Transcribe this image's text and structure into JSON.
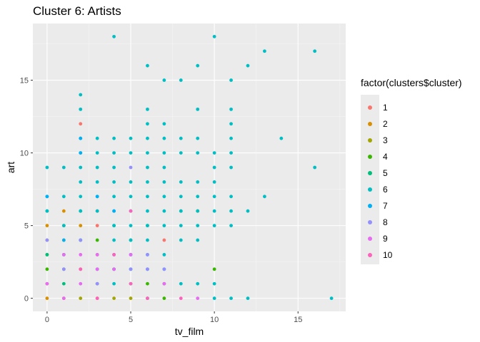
{
  "chart_data": {
    "type": "scatter",
    "title": "Cluster 6: Artists",
    "xlabel": "tv_film",
    "ylabel": "art",
    "xlim": [
      -0.85,
      17.85
    ],
    "ylim": [
      -0.9,
      18.9
    ],
    "x_ticks": [
      0,
      5,
      10,
      15
    ],
    "y_ticks": [
      0,
      5,
      10,
      15
    ],
    "grid": true,
    "legend": {
      "title": "factor(clusters$cluster)",
      "placement": "right",
      "entries": [
        {
          "label": "1",
          "color": "#F8766D"
        },
        {
          "label": "2",
          "color": "#D89000"
        },
        {
          "label": "3",
          "color": "#A3A500"
        },
        {
          "label": "4",
          "color": "#39B600"
        },
        {
          "label": "5",
          "color": "#00BF7D"
        },
        {
          "label": "6",
          "color": "#00BFC4"
        },
        {
          "label": "7",
          "color": "#00B0F6"
        },
        {
          "label": "8",
          "color": "#9590FF"
        },
        {
          "label": "9",
          "color": "#E76BF3"
        },
        {
          "label": "10",
          "color": "#FF62BC"
        }
      ]
    },
    "series": [
      {
        "cluster": "1",
        "points": [
          [
            2,
            12
          ],
          [
            3,
            6
          ],
          [
            3,
            5
          ],
          [
            7,
            4
          ]
        ]
      },
      {
        "cluster": "2",
        "points": [
          [
            0,
            5
          ],
          [
            1,
            6
          ],
          [
            0,
            0
          ],
          [
            1,
            0
          ],
          [
            2,
            5
          ]
        ]
      },
      {
        "cluster": "3",
        "points": [
          [
            0,
            4
          ],
          [
            1,
            4
          ],
          [
            0,
            1
          ],
          [
            1,
            3
          ],
          [
            2,
            2
          ],
          [
            3,
            3
          ],
          [
            1,
            5
          ],
          [
            2,
            0
          ],
          [
            3,
            0
          ],
          [
            4,
            0
          ],
          [
            5,
            0
          ]
        ]
      },
      {
        "cluster": "4",
        "points": [
          [
            0,
            2
          ],
          [
            1,
            2
          ],
          [
            3,
            4
          ],
          [
            4,
            2
          ],
          [
            7,
            0
          ],
          [
            9,
            6
          ],
          [
            10,
            2
          ],
          [
            0,
            3
          ],
          [
            2,
            4
          ],
          [
            3,
            1
          ],
          [
            6,
            1
          ],
          [
            7,
            1
          ]
        ]
      },
      {
        "cluster": "5",
        "points": [
          [
            0,
            6
          ],
          [
            0,
            3
          ],
          [
            1,
            1
          ],
          [
            2,
            6
          ],
          [
            4,
            5
          ],
          [
            5,
            1
          ],
          [
            6,
            0
          ],
          [
            8,
            6
          ],
          [
            5,
            4
          ],
          [
            6,
            5
          ],
          [
            3,
            2
          ]
        ]
      },
      {
        "cluster": "6",
        "points": [
          [
            0,
            9
          ],
          [
            1,
            9
          ],
          [
            2,
            14
          ],
          [
            2,
            13
          ],
          [
            2,
            11
          ],
          [
            2,
            10
          ],
          [
            2,
            9
          ],
          [
            3,
            11
          ],
          [
            3,
            10
          ],
          [
            3,
            9
          ],
          [
            4,
            18
          ],
          [
            4,
            11
          ],
          [
            4,
            10
          ],
          [
            4,
            9
          ],
          [
            5,
            11
          ],
          [
            5,
            10
          ],
          [
            5,
            8
          ],
          [
            6,
            16
          ],
          [
            6,
            13
          ],
          [
            6,
            12
          ],
          [
            6,
            11
          ],
          [
            6,
            10
          ],
          [
            6,
            9
          ],
          [
            6,
            8
          ],
          [
            7,
            15
          ],
          [
            7,
            12
          ],
          [
            7,
            11
          ],
          [
            7,
            10
          ],
          [
            7,
            9
          ],
          [
            7,
            8
          ],
          [
            8,
            15
          ],
          [
            8,
            11
          ],
          [
            8,
            10
          ],
          [
            8,
            8
          ],
          [
            9,
            16
          ],
          [
            9,
            13
          ],
          [
            9,
            11
          ],
          [
            9,
            10
          ],
          [
            9,
            8
          ],
          [
            10,
            18
          ],
          [
            10,
            10
          ],
          [
            10,
            9
          ],
          [
            10,
            8
          ],
          [
            11,
            15
          ],
          [
            11,
            13
          ],
          [
            11,
            12
          ],
          [
            11,
            11
          ],
          [
            11,
            10
          ],
          [
            11,
            9
          ],
          [
            12,
            16
          ],
          [
            13,
            17
          ],
          [
            14,
            11
          ],
          [
            16,
            17
          ],
          [
            16,
            9
          ],
          [
            0,
            7
          ],
          [
            1,
            7
          ],
          [
            2,
            7
          ],
          [
            3,
            7
          ],
          [
            4,
            7
          ],
          [
            5,
            7
          ],
          [
            6,
            7
          ],
          [
            7,
            7
          ],
          [
            8,
            7
          ],
          [
            9,
            7
          ],
          [
            10,
            7
          ],
          [
            11,
            7
          ],
          [
            13,
            7
          ],
          [
            2,
            8
          ],
          [
            3,
            8
          ],
          [
            4,
            8
          ],
          [
            0,
            6
          ],
          [
            2,
            6
          ],
          [
            3,
            6
          ],
          [
            4,
            6
          ],
          [
            5,
            6
          ],
          [
            6,
            6
          ],
          [
            7,
            6
          ],
          [
            8,
            6
          ],
          [
            9,
            6
          ],
          [
            10,
            6
          ],
          [
            11,
            6
          ],
          [
            12,
            6
          ],
          [
            1,
            5
          ],
          [
            4,
            5
          ],
          [
            5,
            5
          ],
          [
            6,
            5
          ],
          [
            7,
            5
          ],
          [
            8,
            5
          ],
          [
            9,
            5
          ],
          [
            10,
            5
          ],
          [
            11,
            5
          ],
          [
            4,
            4
          ],
          [
            5,
            4
          ],
          [
            6,
            4
          ],
          [
            8,
            4
          ],
          [
            9,
            4
          ],
          [
            4,
            3
          ],
          [
            5,
            3
          ],
          [
            6,
            3
          ],
          [
            7,
            3
          ],
          [
            4,
            2
          ],
          [
            5,
            2
          ],
          [
            6,
            2
          ],
          [
            7,
            2
          ],
          [
            4,
            1
          ],
          [
            8,
            1
          ],
          [
            9,
            1
          ],
          [
            10,
            1
          ],
          [
            10,
            0
          ],
          [
            11,
            0
          ],
          [
            12,
            0
          ],
          [
            17,
            0
          ]
        ]
      },
      {
        "cluster": "7",
        "points": [
          [
            0,
            7
          ],
          [
            2,
            10
          ],
          [
            3,
            7
          ],
          [
            2,
            11
          ],
          [
            4,
            6
          ],
          [
            1,
            4
          ],
          [
            2,
            4
          ],
          [
            1,
            3
          ]
        ]
      },
      {
        "cluster": "8",
        "points": [
          [
            0,
            4
          ],
          [
            1,
            2
          ],
          [
            2,
            4
          ],
          [
            5,
            9
          ],
          [
            6,
            2
          ],
          [
            7,
            2
          ],
          [
            5,
            3
          ],
          [
            6,
            3
          ],
          [
            3,
            1
          ],
          [
            4,
            3
          ],
          [
            5,
            2
          ]
        ]
      },
      {
        "cluster": "9",
        "points": [
          [
            0,
            1
          ],
          [
            1,
            3
          ],
          [
            1,
            0
          ],
          [
            2,
            3
          ],
          [
            3,
            3
          ],
          [
            4,
            2
          ],
          [
            5,
            3
          ],
          [
            7,
            1
          ],
          [
            9,
            0
          ],
          [
            3,
            2
          ],
          [
            2,
            1
          ]
        ]
      },
      {
        "cluster": "10",
        "points": [
          [
            2,
            2
          ],
          [
            3,
            0
          ],
          [
            4,
            3
          ],
          [
            5,
            6
          ],
          [
            6,
            0
          ],
          [
            8,
            0
          ],
          [
            5,
            1
          ]
        ]
      }
    ]
  }
}
